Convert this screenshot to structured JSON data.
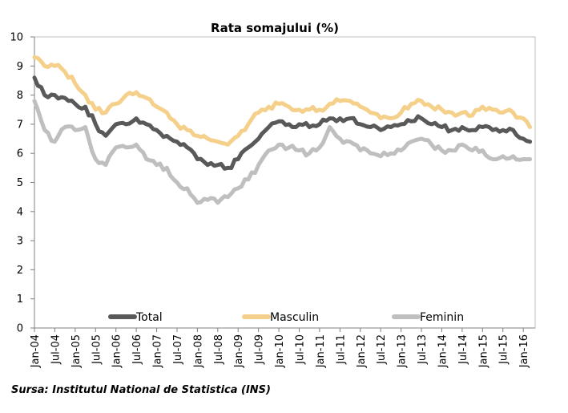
{
  "chart_data": {
    "type": "line",
    "title": "Rata somajului (%)",
    "xlabel": "",
    "ylabel": "",
    "ylim": [
      0,
      10
    ],
    "yticks": [
      "0",
      "1",
      "2",
      "3",
      "4",
      "5",
      "6",
      "7",
      "8",
      "9",
      "10"
    ],
    "xticks": [
      "Jan-04",
      "Jul-04",
      "Jan-05",
      "Jul-05",
      "Jan-06",
      "Jul-06",
      "Jan-07",
      "Jul-07",
      "Jan-08",
      "Jul-08",
      "Jan-09",
      "Jul-09",
      "Jan-10",
      "Jul-10",
      "Jan-11",
      "Jul-11",
      "Jan-12",
      "Jul-12",
      "Jan-13",
      "Jul-13",
      "Jan-14",
      "Jul-14",
      "Jan-15",
      "Jul-15",
      "Jan-16"
    ],
    "grid": false,
    "legend_position": "bottom",
    "series": [
      {
        "name": "Total",
        "color": "#595959",
        "x": [
          "2004-01",
          "2004-04",
          "2004-07",
          "2004-10",
          "2005-01",
          "2005-04",
          "2005-07",
          "2005-10",
          "2006-01",
          "2006-04",
          "2006-07",
          "2006-10",
          "2007-01",
          "2007-04",
          "2007-07",
          "2007-10",
          "2008-01",
          "2008-04",
          "2008-07",
          "2008-10",
          "2009-01",
          "2009-04",
          "2009-07",
          "2009-10",
          "2010-01",
          "2010-04",
          "2010-07",
          "2010-10",
          "2011-01",
          "2011-04",
          "2011-07",
          "2011-10",
          "2012-01",
          "2012-04",
          "2012-07",
          "2012-10",
          "2013-01",
          "2013-04",
          "2013-07",
          "2013-10",
          "2014-01",
          "2014-04",
          "2014-07",
          "2014-10",
          "2015-01",
          "2015-04",
          "2015-07",
          "2015-10",
          "2016-01",
          "2016-03"
        ],
        "values": [
          8.6,
          8.0,
          8.0,
          7.9,
          7.7,
          7.6,
          7.0,
          6.6,
          7.0,
          7.0,
          7.2,
          7.0,
          6.8,
          6.6,
          6.4,
          6.2,
          5.8,
          5.6,
          5.6,
          5.5,
          5.8,
          6.2,
          6.5,
          6.9,
          7.1,
          7.0,
          7.0,
          6.9,
          7.0,
          7.2,
          7.2,
          7.2,
          7.0,
          6.9,
          6.8,
          6.9,
          7.0,
          7.1,
          7.2,
          7.0,
          6.9,
          6.8,
          6.9,
          6.8,
          6.9,
          6.8,
          6.8,
          6.8,
          6.5,
          6.4
        ]
      },
      {
        "name": "Masculin",
        "color": "#f5d08b",
        "x": [
          "2004-01",
          "2004-04",
          "2004-07",
          "2004-10",
          "2005-01",
          "2005-04",
          "2005-07",
          "2005-10",
          "2006-01",
          "2006-04",
          "2006-07",
          "2006-10",
          "2007-01",
          "2007-04",
          "2007-07",
          "2007-10",
          "2008-01",
          "2008-04",
          "2008-07",
          "2008-10",
          "2009-01",
          "2009-04",
          "2009-07",
          "2009-10",
          "2010-01",
          "2010-04",
          "2010-07",
          "2010-10",
          "2011-01",
          "2011-04",
          "2011-07",
          "2011-10",
          "2012-01",
          "2012-04",
          "2012-07",
          "2012-10",
          "2013-01",
          "2013-04",
          "2013-07",
          "2013-10",
          "2014-01",
          "2014-04",
          "2014-07",
          "2014-10",
          "2015-01",
          "2015-04",
          "2015-07",
          "2015-10",
          "2016-01",
          "2016-03"
        ],
        "values": [
          9.3,
          9.0,
          9.0,
          8.8,
          8.4,
          8.0,
          7.5,
          7.4,
          7.7,
          8.0,
          8.1,
          7.9,
          7.6,
          7.4,
          7.0,
          6.8,
          6.6,
          6.5,
          6.4,
          6.3,
          6.6,
          7.0,
          7.4,
          7.6,
          7.7,
          7.6,
          7.5,
          7.5,
          7.5,
          7.7,
          7.8,
          7.8,
          7.6,
          7.4,
          7.2,
          7.2,
          7.4,
          7.7,
          7.8,
          7.6,
          7.5,
          7.4,
          7.4,
          7.3,
          7.6,
          7.5,
          7.4,
          7.4,
          7.2,
          6.9
        ]
      },
      {
        "name": "Feminin",
        "color": "#bfbfbf",
        "x": [
          "2004-01",
          "2004-04",
          "2004-07",
          "2004-10",
          "2005-01",
          "2005-04",
          "2005-07",
          "2005-10",
          "2006-01",
          "2006-04",
          "2006-07",
          "2006-10",
          "2007-01",
          "2007-04",
          "2007-07",
          "2007-10",
          "2008-01",
          "2008-04",
          "2008-07",
          "2008-10",
          "2009-01",
          "2009-04",
          "2009-07",
          "2009-10",
          "2010-01",
          "2010-04",
          "2010-07",
          "2010-10",
          "2011-01",
          "2011-04",
          "2011-07",
          "2011-10",
          "2012-01",
          "2012-04",
          "2012-07",
          "2012-10",
          "2013-01",
          "2013-04",
          "2013-07",
          "2013-10",
          "2014-01",
          "2014-04",
          "2014-07",
          "2014-10",
          "2015-01",
          "2015-04",
          "2015-07",
          "2015-10",
          "2016-01",
          "2016-03"
        ],
        "values": [
          7.8,
          6.8,
          6.4,
          6.9,
          6.8,
          6.9,
          5.8,
          5.6,
          6.2,
          6.2,
          6.3,
          5.8,
          5.6,
          5.5,
          5.0,
          4.8,
          4.3,
          4.4,
          4.3,
          4.5,
          4.8,
          5.1,
          5.6,
          6.1,
          6.3,
          6.2,
          6.1,
          6.0,
          6.2,
          6.9,
          6.5,
          6.4,
          6.1,
          6.0,
          5.9,
          6.0,
          6.1,
          6.4,
          6.5,
          6.3,
          6.1,
          6.1,
          6.3,
          6.1,
          6.1,
          5.8,
          5.9,
          5.9,
          5.8,
          5.8
        ]
      }
    ]
  },
  "source_note": "Sursa: Institutul National de Statistica (INS)"
}
